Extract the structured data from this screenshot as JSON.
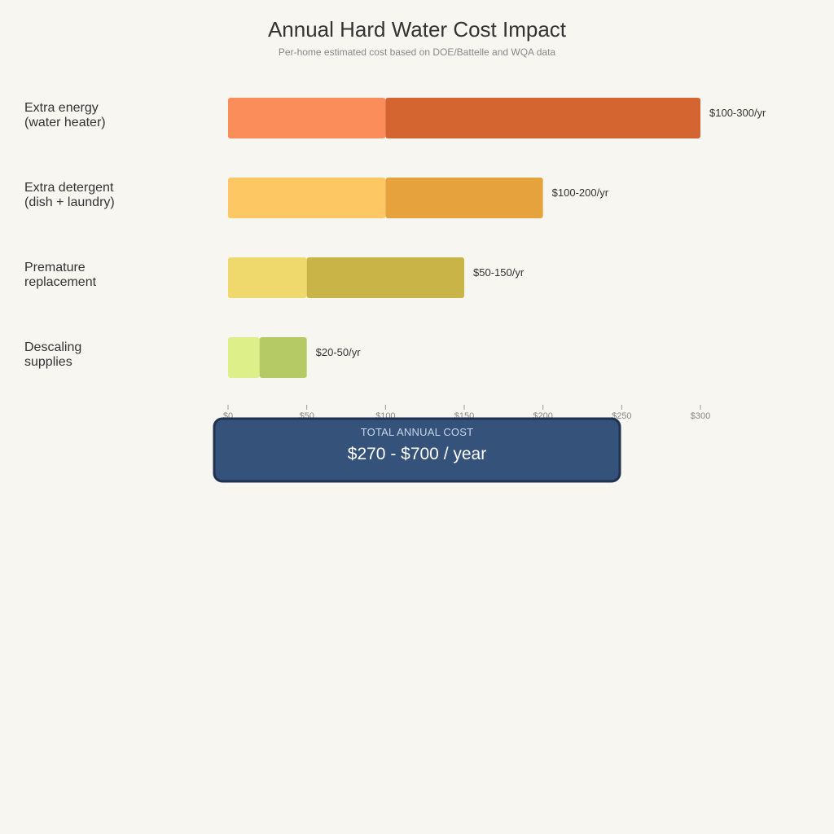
{
  "chart_data": {
    "type": "bar",
    "stacked": true,
    "orientation": "horizontal",
    "title": "Annual Hard Water Cost Impact",
    "subtitle": "Per-home estimated cost based on DOE/Battelle and WQA data",
    "xlim": [
      0,
      300
    ],
    "x_ticks": [
      0,
      50,
      100,
      150,
      200,
      250,
      300
    ],
    "x_tick_labels": [
      "$0",
      "$50",
      "$100",
      "$150",
      "$200",
      "$250",
      "$300"
    ],
    "categories": [
      {
        "label_lines": [
          "Extra energy",
          "(water heater)"
        ],
        "low": 100,
        "high": 300,
        "range_label": "$100-300/yr",
        "color_low": "#fb8d5a",
        "color_high": "#d46530"
      },
      {
        "label_lines": [
          "Extra detergent",
          "(dish + laundry)"
        ],
        "low": 100,
        "high": 200,
        "range_label": "$100-200/yr",
        "color_low": "#fdc764",
        "color_high": "#e6a33d"
      },
      {
        "label_lines": [
          "Premature",
          "replacement"
        ],
        "low": 50,
        "high": 150,
        "range_label": "$50-150/yr",
        "color_low": "#efd96c",
        "color_high": "#c9b448"
      },
      {
        "label_lines": [
          "Descaling",
          "supplies"
        ],
        "low": 20,
        "high": 50,
        "range_label": "$20-50/yr",
        "color_low": "#dcef88",
        "color_high": "#b5c964"
      }
    ],
    "grid": false,
    "legend": "none"
  },
  "total": {
    "caption": "TOTAL ANNUAL COST",
    "value": "$270 - $700 / year",
    "fill": "#34527a",
    "stroke": "#1f3350"
  },
  "colors": {
    "background": "#f7f6f1",
    "axis": "#999999"
  }
}
